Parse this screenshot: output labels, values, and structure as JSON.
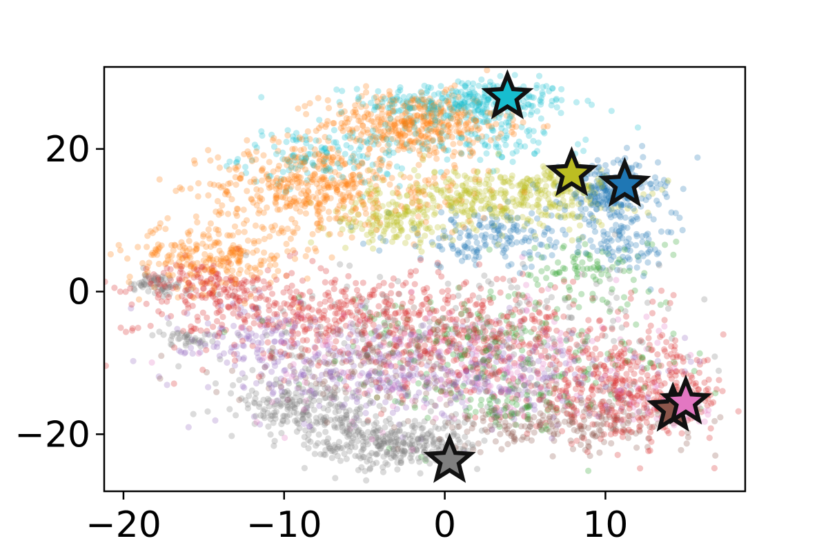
{
  "chart_data": {
    "type": "scatter",
    "title": "",
    "xlabel": "",
    "ylabel": "",
    "xlim": [
      -21.2,
      18.7
    ],
    "ylim": [
      -28,
      31.5
    ],
    "xticks": [
      -20,
      -10,
      0,
      10
    ],
    "yticks": [
      -20,
      0,
      20
    ],
    "xtick_labels": [
      "−20",
      "−10",
      "0",
      "10"
    ],
    "ytick_labels": [
      "−20",
      "0",
      "20"
    ],
    "grid": false,
    "legend": "none",
    "series": [
      {
        "color": "#17becf",
        "centroid": [
          3.9,
          27.3
        ],
        "clusters": [
          {
            "cx": 1.5,
            "cy": 26.5,
            "sx": 3.2,
            "sy": 1.6,
            "n": 320
          },
          {
            "cx": -7.5,
            "cy": 19.0,
            "sx": 2.6,
            "sy": 2.0,
            "n": 140
          },
          {
            "cx": 3.0,
            "cy": 21.0,
            "sx": 3.0,
            "sy": 1.5,
            "n": 90
          }
        ]
      },
      {
        "color": "#ff7f0e",
        "centroid": null,
        "clusters": [
          {
            "cx": -2.0,
            "cy": 23.5,
            "sx": 2.8,
            "sy": 2.2,
            "n": 420
          },
          {
            "cx": -9.0,
            "cy": 15.0,
            "sx": 2.8,
            "sy": 3.0,
            "n": 320
          },
          {
            "cx": -14.5,
            "cy": 5.0,
            "sx": 2.6,
            "sy": 2.5,
            "n": 260
          },
          {
            "cx": -4.0,
            "cy": 14.0,
            "sx": 3.5,
            "sy": 3.0,
            "n": 160
          }
        ]
      },
      {
        "color": "#bcbd22",
        "centroid": [
          7.9,
          16.5
        ],
        "clusters": [
          {
            "cx": 3.0,
            "cy": 13.0,
            "sx": 3.8,
            "sy": 2.2,
            "n": 380
          },
          {
            "cx": -3.5,
            "cy": 9.5,
            "sx": 1.8,
            "sy": 1.5,
            "n": 110
          },
          {
            "cx": 7.5,
            "cy": 15.5,
            "sx": 1.4,
            "sy": 1.3,
            "n": 90
          }
        ]
      },
      {
        "color": "#1f77b4",
        "centroid": [
          11.2,
          15.0
        ],
        "clusters": [
          {
            "cx": 10.3,
            "cy": 14.0,
            "sx": 1.5,
            "sy": 2.2,
            "n": 260
          },
          {
            "cx": 3.0,
            "cy": 7.5,
            "sx": 3.2,
            "sy": 2.0,
            "n": 170
          },
          {
            "cx": 11.5,
            "cy": 6.5,
            "sx": 1.5,
            "sy": 2.0,
            "n": 80
          }
        ]
      },
      {
        "color": "#d62728",
        "centroid": null,
        "clusters": [
          {
            "cx": 11.5,
            "cy": -14.5,
            "sx": 3.2,
            "sy": 3.0,
            "n": 380
          },
          {
            "cx": -8.0,
            "cy": -3.0,
            "sx": 5.5,
            "sy": 3.0,
            "n": 420
          },
          {
            "cx": 3.0,
            "cy": -7.0,
            "sx": 5.5,
            "sy": 4.0,
            "n": 380
          },
          {
            "cx": -15.0,
            "cy": 1.0,
            "sx": 2.0,
            "sy": 1.5,
            "n": 120
          }
        ]
      },
      {
        "color": "#8c564b",
        "centroid": [
          14.2,
          -16.5
        ],
        "clusters": [
          {
            "cx": 7.5,
            "cy": -18.5,
            "sx": 4.0,
            "sy": 1.8,
            "n": 220
          },
          {
            "cx": -3.0,
            "cy": -10.0,
            "sx": 5.0,
            "sy": 3.0,
            "n": 180
          }
        ]
      },
      {
        "color": "#e377c2",
        "centroid": [
          15.0,
          -15.5
        ],
        "clusters": [
          {
            "cx": 0.5,
            "cy": -10.0,
            "sx": 6.0,
            "sy": 4.5,
            "n": 260
          },
          {
            "cx": 14.0,
            "cy": -16.5,
            "sx": 1.3,
            "sy": 1.3,
            "n": 50
          }
        ]
      },
      {
        "color": "#9467bd",
        "centroid": null,
        "clusters": [
          {
            "cx": -5.0,
            "cy": -11.0,
            "sx": 4.5,
            "sy": 4.0,
            "n": 260
          },
          {
            "cx": 4.0,
            "cy": -12.0,
            "sx": 4.0,
            "sy": 3.0,
            "n": 180
          },
          {
            "cx": -12.0,
            "cy": -6.0,
            "sx": 2.5,
            "sy": 2.0,
            "n": 90
          }
        ]
      },
      {
        "color": "#2ca02c",
        "centroid": null,
        "clusters": [
          {
            "cx": 3.0,
            "cy": -8.0,
            "sx": 6.0,
            "sy": 5.0,
            "n": 220
          },
          {
            "cx": 9.0,
            "cy": 3.5,
            "sx": 2.5,
            "sy": 2.0,
            "n": 80
          },
          {
            "cx": 4.0,
            "cy": -16.0,
            "sx": 2.0,
            "sy": 1.5,
            "n": 60
          }
        ]
      },
      {
        "color": "#7f7f7f",
        "centroid": [
          0.3,
          -23.7
        ],
        "clusters": [
          {
            "cx": -3.0,
            "cy": -21.5,
            "sx": 2.6,
            "sy": 1.8,
            "n": 320
          },
          {
            "cx": -8.5,
            "cy": -16.5,
            "sx": 2.4,
            "sy": 2.0,
            "n": 220
          },
          {
            "cx": -18.0,
            "cy": 1.0,
            "sx": 0.9,
            "sy": 0.8,
            "n": 60
          },
          {
            "cx": -16.0,
            "cy": -6.5,
            "sx": 1.0,
            "sy": 0.6,
            "n": 40
          },
          {
            "cx": 2.0,
            "cy": -6.0,
            "sx": 7.0,
            "sy": 5.0,
            "n": 220
          }
        ]
      }
    ]
  }
}
